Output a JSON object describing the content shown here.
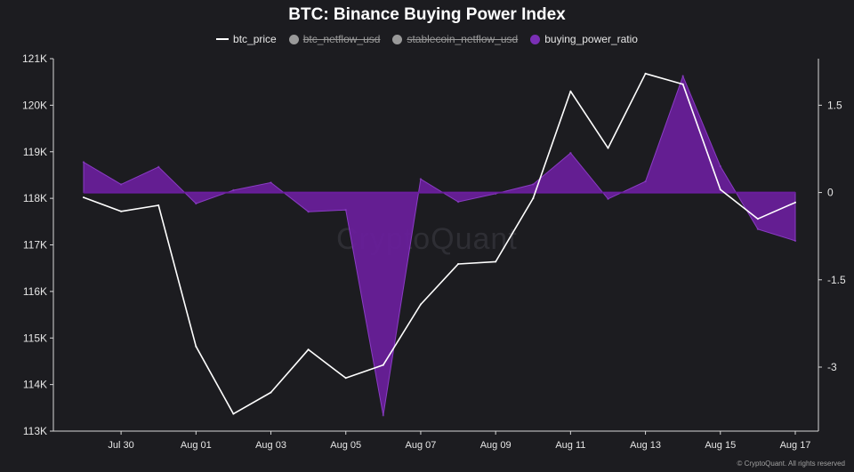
{
  "page": {
    "watermark": "CryptoQuant",
    "copyright": "© CryptoQuant. All rights reserved"
  },
  "colors": {
    "background": "#1c1c20",
    "price_line": "#ffffff",
    "ratio_fill": "#6a1e9c",
    "ratio_stroke": "#8a3cc4",
    "axis": "#d8d8d8"
  },
  "chart_data": {
    "type": "line",
    "title": "BTC: Binance Buying Power Index",
    "legend": [
      {
        "name": "btc_price",
        "swatch": "line",
        "color": "#ffffff",
        "active": true
      },
      {
        "name": "btc_netflow_usd",
        "swatch": "dot",
        "color": "#9a9a9a",
        "active": false
      },
      {
        "name": "stablecoin_netflow_usd",
        "swatch": "dot",
        "color": "#9a9a9a",
        "active": false
      },
      {
        "name": "buying_power_ratio",
        "swatch": "dot",
        "color": "#7a2fb5",
        "active": true
      }
    ],
    "x": [
      "2025-07-29",
      "2025-07-30",
      "2025-07-31",
      "2025-08-01",
      "2025-08-02",
      "2025-08-03",
      "2025-08-04",
      "2025-08-05",
      "2025-08-06",
      "2025-08-07",
      "2025-08-08",
      "2025-08-09",
      "2025-08-10",
      "2025-08-11",
      "2025-08-12",
      "2025-08-13",
      "2025-08-14",
      "2025-08-15",
      "2025-08-16",
      "2025-08-17"
    ],
    "x_ticks": [
      {
        "date": "2025-07-30",
        "label": "Jul 30"
      },
      {
        "date": "2025-08-01",
        "label": "Aug 01"
      },
      {
        "date": "2025-08-03",
        "label": "Aug 03"
      },
      {
        "date": "2025-08-05",
        "label": "Aug 05"
      },
      {
        "date": "2025-08-07",
        "label": "Aug 07"
      },
      {
        "date": "2025-08-09",
        "label": "Aug 09"
      },
      {
        "date": "2025-08-11",
        "label": "Aug 11"
      },
      {
        "date": "2025-08-13",
        "label": "Aug 13"
      },
      {
        "date": "2025-08-15",
        "label": "Aug 15"
      },
      {
        "date": "2025-08-17",
        "label": "Aug 17"
      }
    ],
    "series": [
      {
        "name": "btc_price",
        "axis": "left",
        "type": "line",
        "values": [
          118020,
          117720,
          117850,
          114820,
          113370,
          113830,
          114750,
          114140,
          114420,
          115720,
          116590,
          116640,
          118000,
          120300,
          119080,
          120680,
          120450,
          118190,
          117560,
          117910
        ]
      },
      {
        "name": "buying_power_ratio",
        "axis": "right",
        "type": "area",
        "values": [
          0.52,
          0.14,
          0.44,
          -0.19,
          0.04,
          0.17,
          -0.33,
          -0.3,
          -3.83,
          0.23,
          -0.16,
          -0.02,
          0.14,
          0.68,
          -0.11,
          0.19,
          2.0,
          0.45,
          -0.63,
          -0.83
        ]
      }
    ],
    "y_left": {
      "min": 113000,
      "max": 121000,
      "ticks": [
        113000,
        114000,
        115000,
        116000,
        117000,
        118000,
        119000,
        120000,
        121000
      ],
      "tick_labels": [
        "113K",
        "114K",
        "115K",
        "116K",
        "117K",
        "118K",
        "119K",
        "120K",
        "121K"
      ]
    },
    "y_right": {
      "min": -4.1,
      "max": 2.3,
      "ticks": [
        1.5,
        0,
        -1.5,
        -3
      ],
      "tick_labels": [
        "1.5",
        "0",
        "-1.5",
        "-3"
      ]
    },
    "grid": false,
    "legend_position": "top-center"
  }
}
